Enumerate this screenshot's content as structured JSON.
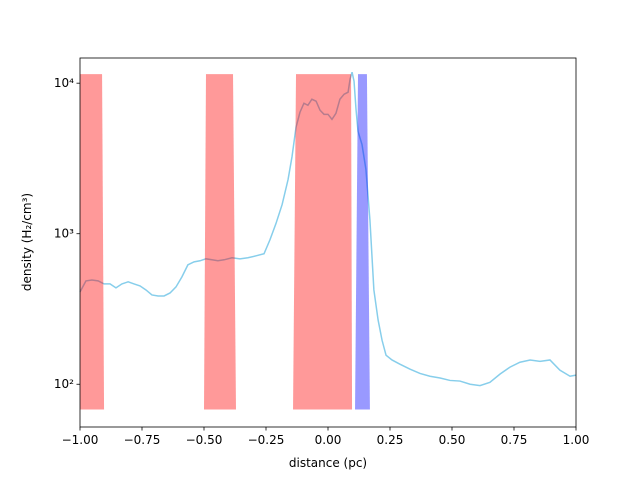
{
  "chart_data": {
    "type": "line",
    "xlabel": "distance (pc)",
    "ylabel": "density (H₂/cm³)",
    "ylog": true,
    "xlim": [
      -1,
      1
    ],
    "ylim": [
      52,
      14700
    ],
    "xticks": [
      {
        "value": -1,
        "label": "−1.00"
      },
      {
        "value": -0.75,
        "label": "−0.75"
      },
      {
        "value": -0.5,
        "label": "−0.50"
      },
      {
        "value": -0.25,
        "label": "−0.25"
      },
      {
        "value": 0,
        "label": "0.00"
      },
      {
        "value": 0.25,
        "label": "0.25"
      },
      {
        "value": 0.5,
        "label": "0.50"
      },
      {
        "value": 0.75,
        "label": "0.75"
      },
      {
        "value": 1,
        "label": "1.00"
      }
    ],
    "yticks": [
      {
        "value": 100,
        "label": "10²"
      },
      {
        "value": 1000,
        "label": "10³"
      },
      {
        "value": 10000,
        "label": "10⁴"
      }
    ],
    "series": [
      {
        "color": "#87ceeb",
        "x": [
          -1.0,
          -0.976,
          -0.952,
          -0.927,
          -0.903,
          -0.879,
          -0.855,
          -0.831,
          -0.806,
          -0.782,
          -0.758,
          -0.734,
          -0.71,
          -0.685,
          -0.661,
          -0.637,
          -0.613,
          -0.589,
          -0.565,
          -0.54,
          -0.516,
          -0.492,
          -0.468,
          -0.444,
          -0.419,
          -0.387,
          -0.355,
          -0.323,
          -0.29,
          -0.258,
          -0.234,
          -0.21,
          -0.185,
          -0.161,
          -0.145,
          -0.129,
          -0.113,
          -0.097,
          -0.081,
          -0.065,
          -0.048,
          -0.032,
          -0.016,
          0.0,
          0.016,
          0.032,
          0.048,
          0.065,
          0.081,
          0.089,
          0.097,
          0.105,
          0.113,
          0.121,
          0.137,
          0.153,
          0.169,
          0.185,
          0.202,
          0.218,
          0.234,
          0.258,
          0.29,
          0.331,
          0.371,
          0.411,
          0.452,
          0.492,
          0.532,
          0.573,
          0.613,
          0.653,
          0.694,
          0.734,
          0.774,
          0.815,
          0.855,
          0.895,
          0.935,
          0.976,
          1.0
        ],
        "values": [
          410,
          486,
          493,
          486,
          464,
          464,
          437,
          464,
          479,
          464,
          450,
          423,
          392,
          386,
          386,
          404,
          443,
          517,
          621,
          650,
          661,
          681,
          671,
          661,
          671,
          692,
          681,
          692,
          713,
          736,
          912,
          1166,
          1561,
          2291,
          3260,
          5090,
          6410,
          7360,
          7130,
          7820,
          7590,
          6610,
          6210,
          6210,
          5750,
          6310,
          7820,
          8450,
          8710,
          10630,
          11830,
          10310,
          6710,
          4790,
          3920,
          2670,
          1240,
          423,
          267,
          196,
          156,
          145,
          136,
          126,
          118,
          113,
          110,
          106,
          105,
          100,
          98,
          103,
          117,
          130,
          140,
          145,
          142,
          145,
          124,
          113,
          115
        ]
      }
    ],
    "regions": [
      {
        "color": "#ff0000",
        "x_top": [
          -1.0,
          -0.911
        ],
        "x_bottom": [
          -1.0,
          -0.903
        ],
        "y": [
          68,
          11480
        ]
      },
      {
        "color": "#ff0000",
        "x_top": [
          -0.492,
          -0.383
        ],
        "x_bottom": [
          -0.5,
          -0.371
        ],
        "y": [
          68,
          11480
        ]
      },
      {
        "color": "#ff0000",
        "x_top": [
          -0.129,
          0.093
        ],
        "x_bottom": [
          -0.141,
          0.097
        ],
        "y": [
          68,
          11480
        ]
      },
      {
        "color": "#0000ff",
        "x_top": [
          0.121,
          0.157
        ],
        "x_bottom": [
          0.109,
          0.169
        ],
        "y": [
          68,
          11480
        ]
      }
    ]
  }
}
